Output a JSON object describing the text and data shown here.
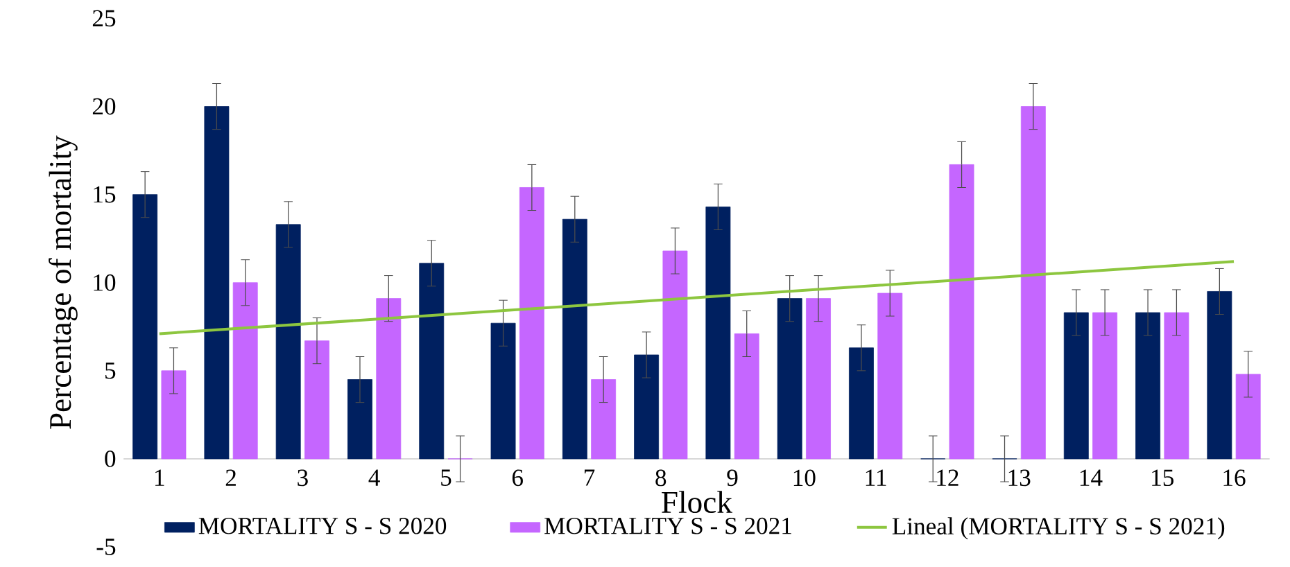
{
  "chart_data": {
    "type": "bar",
    "xlabel": "Flock",
    "ylabel": "Percentage of mortality",
    "x": [
      1,
      2,
      3,
      4,
      5,
      6,
      7,
      8,
      9,
      10,
      11,
      12,
      13,
      14,
      15,
      16
    ],
    "xlim": [
      0.5,
      16.5
    ],
    "xticks": [
      1,
      2,
      3,
      4,
      5,
      6,
      7,
      8,
      9,
      10,
      11,
      12,
      13,
      14,
      15,
      16
    ],
    "ylim": [
      -5,
      25
    ],
    "yticks": [
      -5,
      0,
      5,
      10,
      15,
      20,
      25
    ],
    "series": [
      {
        "name": "MORTALITY S - S 2020",
        "color": "#002060",
        "values": [
          15,
          20,
          13.3,
          4.5,
          11.1,
          7.7,
          13.6,
          5.9,
          14.3,
          9.1,
          6.3,
          0,
          0,
          8.3,
          8.3,
          9.5
        ],
        "errors": [
          1.3,
          1.3,
          1.3,
          1.3,
          1.3,
          1.3,
          1.3,
          1.3,
          1.3,
          1.3,
          1.3,
          1.3,
          1.3,
          1.3,
          1.3,
          1.3
        ]
      },
      {
        "name": "MORTALITY S - S 2021",
        "color": "#c566ff",
        "values": [
          5,
          10,
          6.7,
          9.1,
          0,
          15.4,
          4.5,
          11.8,
          7.1,
          9.1,
          9.4,
          16.7,
          20,
          8.3,
          8.3,
          4.8
        ],
        "errors": [
          1.3,
          1.3,
          1.3,
          1.3,
          1.3,
          1.3,
          1.3,
          1.3,
          1.3,
          1.3,
          1.3,
          1.3,
          1.3,
          1.3,
          1.3,
          1.3
        ]
      },
      {
        "name": "Lineal (MORTALITY S - S 2021)",
        "type": "line",
        "color": "#8dc63f",
        "x": [
          1,
          16
        ],
        "values": [
          7.1,
          11.2
        ]
      }
    ],
    "grid": false,
    "legend": "bottom"
  }
}
